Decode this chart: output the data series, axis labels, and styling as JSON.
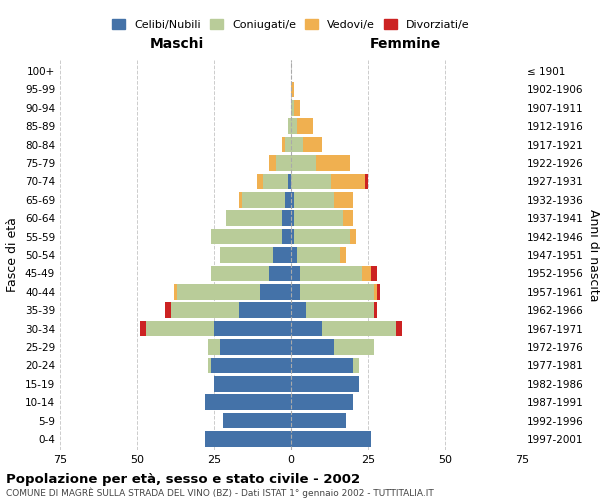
{
  "age_groups": [
    "0-4",
    "5-9",
    "10-14",
    "15-19",
    "20-24",
    "25-29",
    "30-34",
    "35-39",
    "40-44",
    "45-49",
    "50-54",
    "55-59",
    "60-64",
    "65-69",
    "70-74",
    "75-79",
    "80-84",
    "85-89",
    "90-94",
    "95-99",
    "100+"
  ],
  "birth_years": [
    "1997-2001",
    "1992-1996",
    "1987-1991",
    "1982-1986",
    "1977-1981",
    "1972-1976",
    "1967-1971",
    "1962-1966",
    "1957-1961",
    "1952-1956",
    "1947-1951",
    "1942-1946",
    "1937-1941",
    "1932-1936",
    "1927-1931",
    "1922-1926",
    "1917-1921",
    "1912-1916",
    "1907-1911",
    "1902-1906",
    "≤ 1901"
  ],
  "maschi": {
    "celibi": [
      28,
      22,
      28,
      25,
      26,
      23,
      25,
      17,
      10,
      7,
      6,
      3,
      3,
      2,
      1,
      0,
      0,
      0,
      0,
      0,
      0
    ],
    "coniugati": [
      0,
      0,
      0,
      0,
      1,
      4,
      22,
      22,
      27,
      19,
      17,
      23,
      18,
      14,
      8,
      5,
      2,
      1,
      0,
      0,
      0
    ],
    "vedovi": [
      0,
      0,
      0,
      0,
      0,
      0,
      0,
      0,
      1,
      0,
      0,
      0,
      0,
      1,
      2,
      2,
      1,
      0,
      0,
      0,
      0
    ],
    "divorziati": [
      0,
      0,
      0,
      0,
      0,
      0,
      2,
      2,
      0,
      0,
      0,
      0,
      0,
      0,
      0,
      0,
      0,
      0,
      0,
      0,
      0
    ]
  },
  "femmine": {
    "nubili": [
      26,
      18,
      20,
      22,
      20,
      14,
      10,
      5,
      3,
      3,
      2,
      1,
      1,
      1,
      0,
      0,
      0,
      0,
      0,
      0,
      0
    ],
    "coniugate": [
      0,
      0,
      0,
      0,
      2,
      13,
      24,
      22,
      24,
      20,
      14,
      18,
      16,
      13,
      13,
      8,
      4,
      2,
      1,
      0,
      0
    ],
    "vedove": [
      0,
      0,
      0,
      0,
      0,
      0,
      0,
      0,
      1,
      3,
      2,
      2,
      3,
      6,
      11,
      11,
      6,
      5,
      2,
      1,
      0
    ],
    "divorziate": [
      0,
      0,
      0,
      0,
      0,
      0,
      2,
      1,
      1,
      2,
      0,
      0,
      0,
      0,
      1,
      0,
      0,
      0,
      0,
      0,
      0
    ]
  },
  "colors": {
    "celibi": "#4472a8",
    "coniugati": "#b9cc99",
    "vedovi": "#f0b050",
    "divorziati": "#cc2222"
  },
  "title": "Popolazione per età, sesso e stato civile - 2002",
  "subtitle": "COMUNE DI MAGRÈ SULLA STRADA DEL VINO (BZ) - Dati ISTAT 1° gennaio 2002 - TUTTITALIA.IT",
  "xlabel_left": "Maschi",
  "xlabel_right": "Femmine",
  "ylabel_left": "Fasce di età",
  "ylabel_right": "Anni di nascita",
  "xlim": 75,
  "bg_color": "#ffffff",
  "grid_color": "#cccccc"
}
